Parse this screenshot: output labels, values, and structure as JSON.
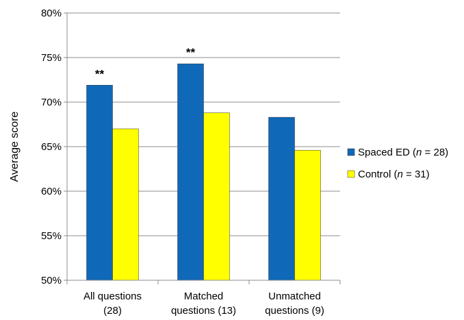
{
  "chart_data": {
    "type": "bar",
    "ylabel": "Average score",
    "xlabel": "",
    "ylim": [
      50,
      80
    ],
    "yticks": [
      50,
      55,
      60,
      65,
      70,
      75,
      80
    ],
    "ytick_labels": [
      "50%",
      "55%",
      "60%",
      "65%",
      "70%",
      "75%",
      "80%"
    ],
    "grid": true,
    "legend_position": "right",
    "categories": [
      {
        "line1": "All questions",
        "line2": "(28)"
      },
      {
        "line1": "Matched",
        "line2": "questions (13)"
      },
      {
        "line1": "Unmatched",
        "line2": "questions (9)"
      }
    ],
    "series": [
      {
        "name": "Spaced ED",
        "n_label": "n",
        "n_value": "= 28)",
        "color": "#0f68b8",
        "values": [
          71.9,
          74.3,
          68.3
        ]
      },
      {
        "name": "Control",
        "n_label": "n",
        "n_value": "= 31)",
        "color": "#ffff00",
        "values": [
          67.0,
          68.8,
          64.6
        ]
      }
    ],
    "annotations": [
      "**",
      "**",
      ""
    ]
  }
}
